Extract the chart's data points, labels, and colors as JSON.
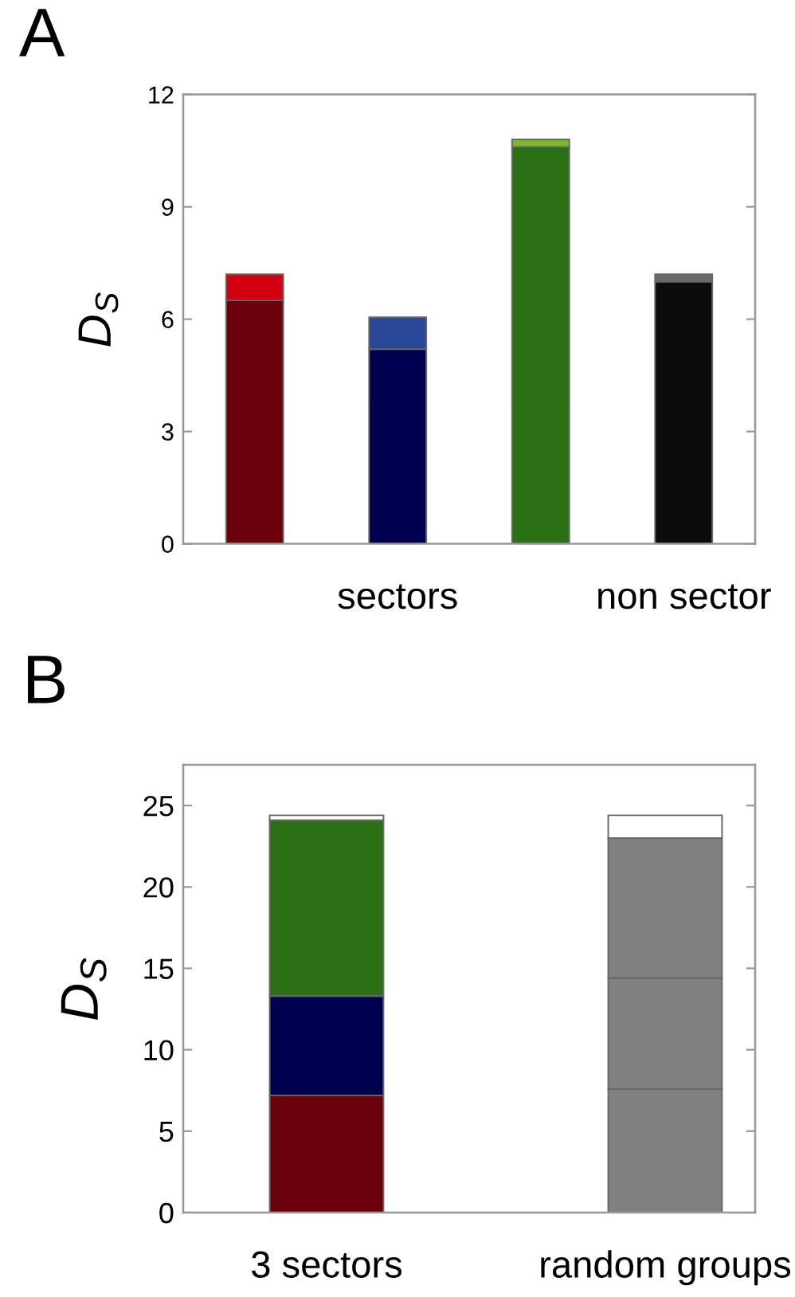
{
  "chart_data": [
    {
      "type": "bar",
      "title": "A",
      "ylabel": "D$_{S}$",
      "categories": [
        null,
        "sectors",
        null,
        "non sector"
      ],
      "stacked": true,
      "series": [
        {
          "colors": [
            "#6a000a",
            "#000050",
            "#2a7015",
            "#0c0c0c"
          ],
          "values": [
            6.5,
            5.2,
            10.6,
            7.0
          ]
        },
        {
          "colors": [
            "#d0000e",
            "#2a4898",
            "#7ab828",
            "#6a6a6a"
          ],
          "values": [
            0.7,
            0.85,
            0.2,
            0.2
          ]
        }
      ],
      "ylim": [
        0,
        12
      ],
      "yticks": [
        0,
        3,
        6,
        9,
        12
      ]
    },
    {
      "type": "bar",
      "title": "B",
      "ylabel": "D$_{S}$",
      "categories": [
        "3 sectors",
        "random groups"
      ],
      "stacked": true,
      "series": [
        {
          "colors": [
            "#6a000a",
            "#808080"
          ],
          "values": [
            7.2,
            7.6
          ]
        },
        {
          "colors": [
            "#000050",
            "#808080"
          ],
          "values": [
            6.1,
            6.8
          ]
        },
        {
          "colors": [
            "#2a7015",
            "#808080"
          ],
          "values": [
            10.8,
            8.6
          ]
        },
        {
          "colors": [
            "#ffffff",
            "#ffffff"
          ],
          "values": [
            0.3,
            1.4
          ]
        }
      ],
      "ylim": [
        0,
        27.5
      ],
      "yticks": [
        0,
        5,
        10,
        15,
        20,
        25
      ]
    }
  ]
}
